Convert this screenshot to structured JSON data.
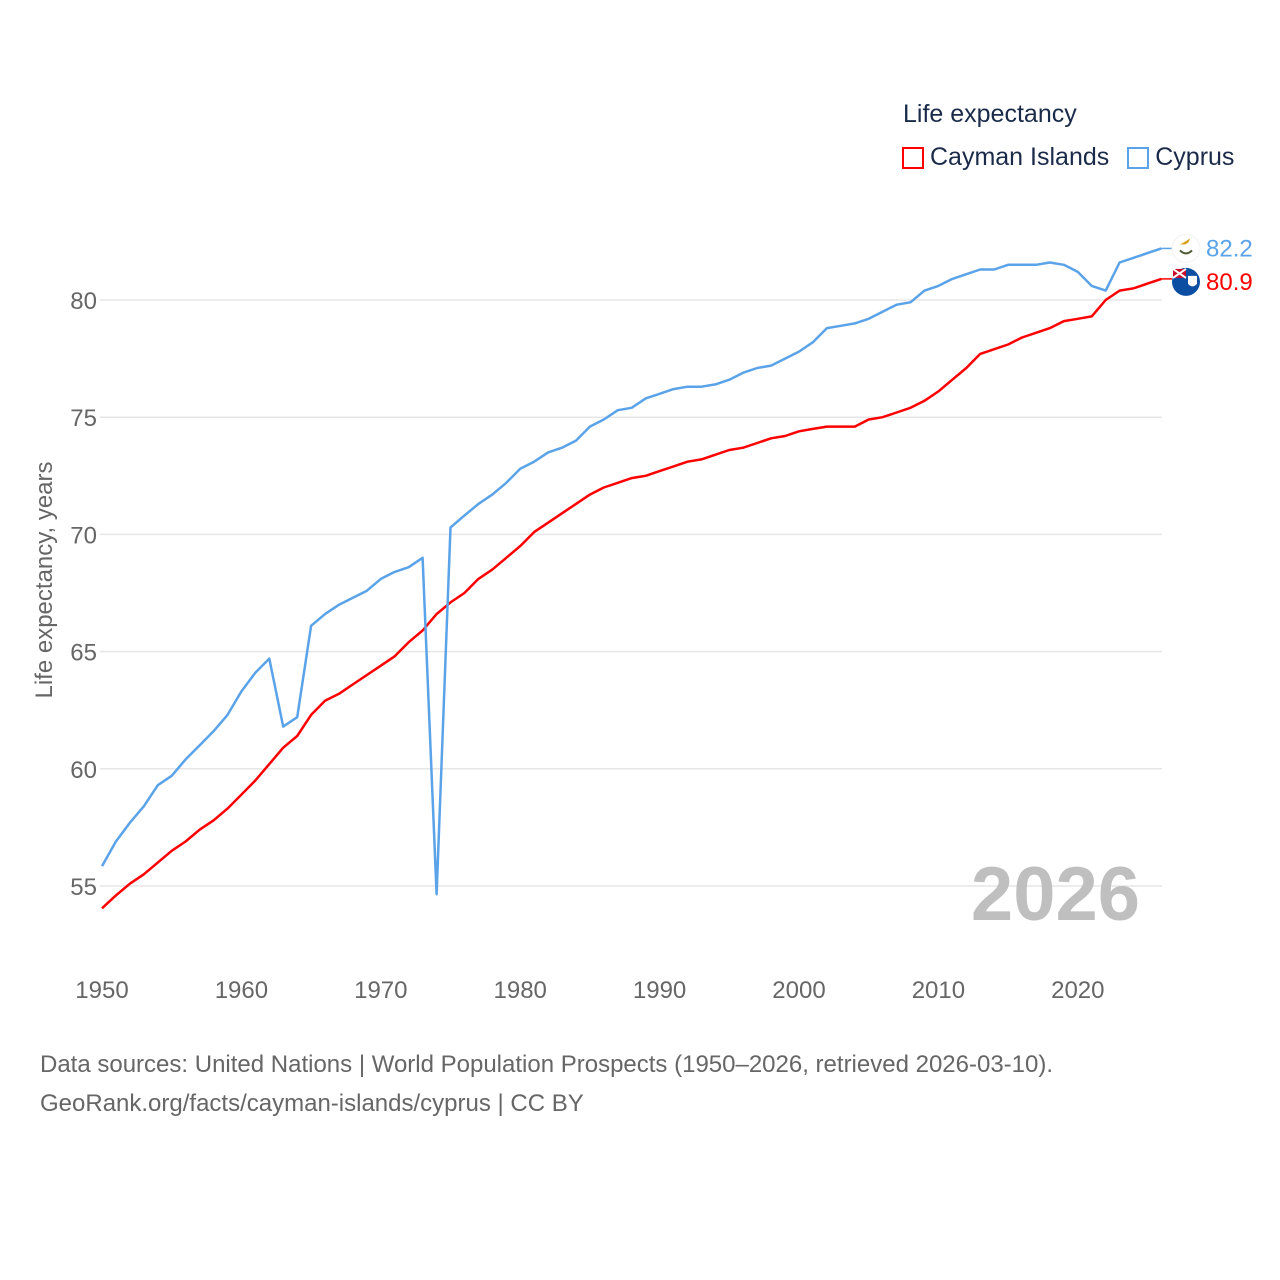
{
  "chart_data": {
    "type": "line",
    "title": "Life expectancy",
    "xlabel": "",
    "ylabel": "Life expectancy, years",
    "xlim": [
      1950,
      2026
    ],
    "ylim": [
      53,
      83
    ],
    "grid": true,
    "legend_position": "top-right",
    "x_ticks": [
      "1950",
      "1960",
      "1970",
      "1980",
      "1990",
      "2000",
      "2010",
      "2020"
    ],
    "y_ticks": [
      "55",
      "60",
      "65",
      "70",
      "75",
      "80"
    ],
    "year_watermark": "2026",
    "x": [
      1950,
      1951,
      1952,
      1953,
      1954,
      1955,
      1956,
      1957,
      1958,
      1959,
      1960,
      1961,
      1962,
      1963,
      1964,
      1965,
      1966,
      1967,
      1968,
      1969,
      1970,
      1971,
      1972,
      1973,
      1974,
      1975,
      1976,
      1977,
      1978,
      1979,
      1980,
      1981,
      1982,
      1983,
      1984,
      1985,
      1986,
      1987,
      1988,
      1989,
      1990,
      1991,
      1992,
      1993,
      1994,
      1995,
      1996,
      1997,
      1998,
      1999,
      2000,
      2001,
      2002,
      2003,
      2004,
      2005,
      2006,
      2007,
      2008,
      2009,
      2010,
      2011,
      2012,
      2013,
      2014,
      2015,
      2016,
      2017,
      2018,
      2019,
      2020,
      2021,
      2022,
      2023,
      2024,
      2025,
      2026
    ],
    "series": [
      {
        "name": "Cayman Islands",
        "color": "#ff0000",
        "end_label": "80.9",
        "flag": "cayman-islands-flag",
        "values": [
          54.05,
          54.6,
          55.1,
          55.5,
          56.0,
          56.5,
          56.9,
          57.4,
          57.8,
          58.3,
          58.9,
          59.5,
          60.2,
          60.9,
          61.4,
          62.3,
          62.9,
          63.2,
          63.6,
          64.0,
          64.4,
          64.8,
          65.4,
          65.9,
          66.6,
          67.1,
          67.5,
          68.1,
          68.5,
          69.0,
          69.5,
          70.1,
          70.5,
          70.9,
          71.3,
          71.7,
          72.0,
          72.2,
          72.4,
          72.5,
          72.7,
          72.9,
          73.1,
          73.2,
          73.4,
          73.6,
          73.7,
          73.9,
          74.1,
          74.2,
          74.4,
          74.5,
          74.6,
          74.6,
          74.6,
          74.9,
          75.0,
          75.2,
          75.4,
          75.7,
          76.1,
          76.6,
          77.1,
          77.7,
          77.9,
          78.1,
          78.4,
          78.6,
          78.8,
          79.1,
          79.2,
          79.3,
          80.0,
          80.4,
          80.5,
          80.7,
          80.9
        ]
      },
      {
        "name": "Cyprus",
        "color": "#5ba3e8",
        "end_label": "82.2",
        "flag": "cyprus-flag",
        "values": [
          55.85,
          56.9,
          57.7,
          58.4,
          59.3,
          59.7,
          60.4,
          61.0,
          61.6,
          62.3,
          63.3,
          64.1,
          64.7,
          61.8,
          62.2,
          66.1,
          66.6,
          67.0,
          67.3,
          67.6,
          68.1,
          68.4,
          68.6,
          69.0,
          54.65,
          70.3,
          70.8,
          71.3,
          71.7,
          72.2,
          72.8,
          73.1,
          73.5,
          73.7,
          74.0,
          74.6,
          74.9,
          75.3,
          75.4,
          75.8,
          76.0,
          76.2,
          76.3,
          76.3,
          76.4,
          76.6,
          76.9,
          77.1,
          77.2,
          77.5,
          77.8,
          78.2,
          78.8,
          78.9,
          79.0,
          79.2,
          79.5,
          79.8,
          79.9,
          80.4,
          80.6,
          80.9,
          81.1,
          81.3,
          81.3,
          81.5,
          81.5,
          81.5,
          81.6,
          81.5,
          81.2,
          80.6,
          80.4,
          81.6,
          81.8,
          82.0,
          82.2
        ]
      }
    ]
  },
  "source": {
    "line1": "Data sources: United Nations | World Population Prospects (1950–2026, retrieved 2026-03-10).",
    "line2": "GeoRank.org/facts/cayman-islands/cyprus | CC BY"
  }
}
